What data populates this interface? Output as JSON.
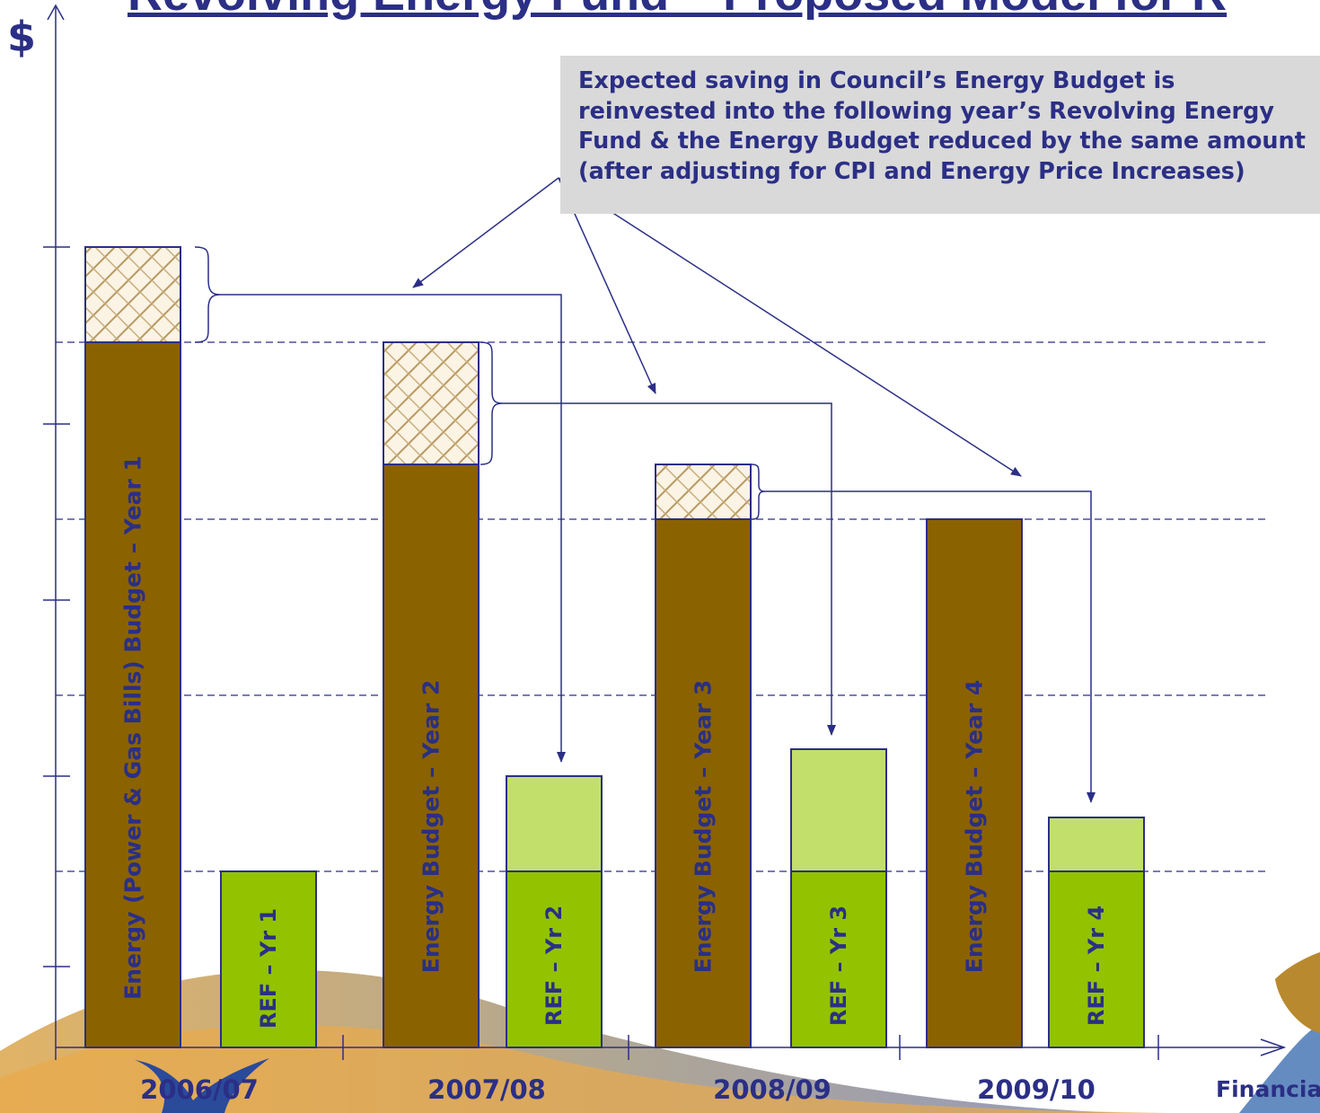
{
  "title": "Revolving Energy Fund – Proposed Model for R",
  "y_axis_symbol": "$",
  "callout_text": "Expected saving in Council’s Energy Budget is reinvested into the following year’s Revolving Energy Fund & the Energy Budget reduced by the same amount (after adjusting for CPI and Energy Price Increases)",
  "x_axis_label": "Financia",
  "years": [
    "2006/07",
    "2007/08",
    "2008/09",
    "2009/10"
  ],
  "bars": {
    "energy": [
      "Energy (Power & Gas Bills) Budget – Year 1",
      "Energy Budget – Year 2",
      "Energy Budget – Year 3",
      "Energy Budget – Year 4"
    ],
    "ref": [
      "REF – Yr 1",
      "REF – Yr 2",
      "REF – Yr 3",
      "REF – Yr 4"
    ]
  },
  "colors": {
    "energy_bar": "#8a6200",
    "ref_base": "#92c200",
    "ref_extra": "#c3df6b",
    "text": "#2b2f85",
    "callout_bg": "#d9d9d9"
  }
}
